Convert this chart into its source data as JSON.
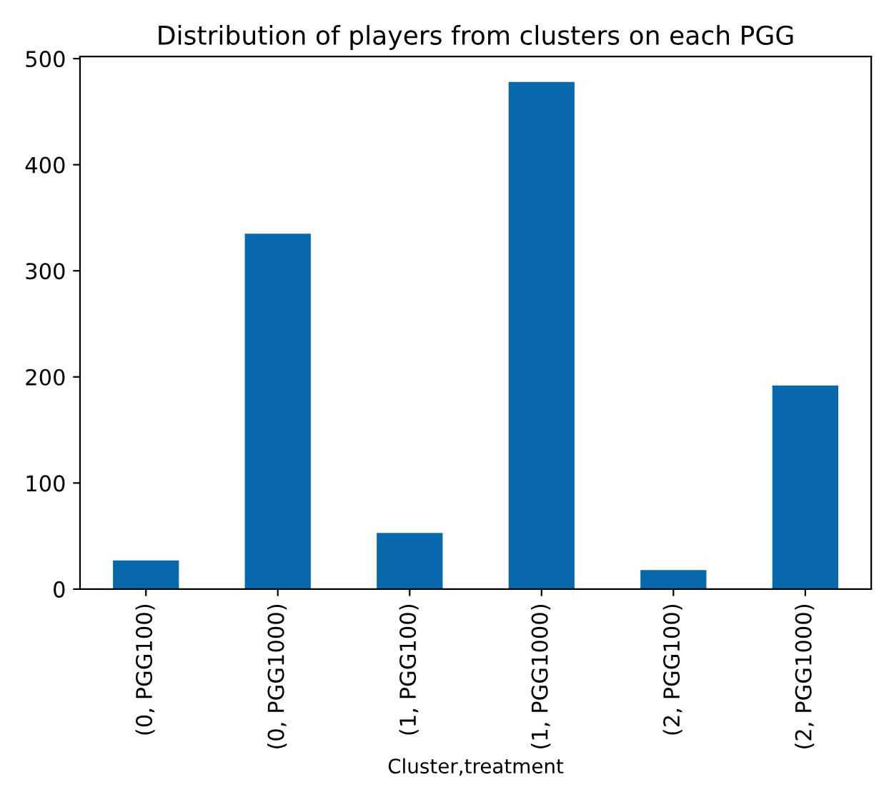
{
  "chart_data": {
    "type": "bar",
    "title": "Distribution of players from clusters on each PGG",
    "xlabel": "Cluster,treatment",
    "categories": [
      "(0, PGG100)",
      "(0, PGG1000)",
      "(1, PGG100)",
      "(1, PGG1000)",
      "(2, PGG100)",
      "(2, PGG1000)"
    ],
    "values": [
      27,
      335,
      53,
      478,
      18,
      192
    ],
    "color": "#0868ac",
    "ylim": [
      0,
      502
    ],
    "yticks": [
      0,
      100,
      200,
      300,
      400,
      500
    ],
    "grid": false,
    "legend": false
  }
}
